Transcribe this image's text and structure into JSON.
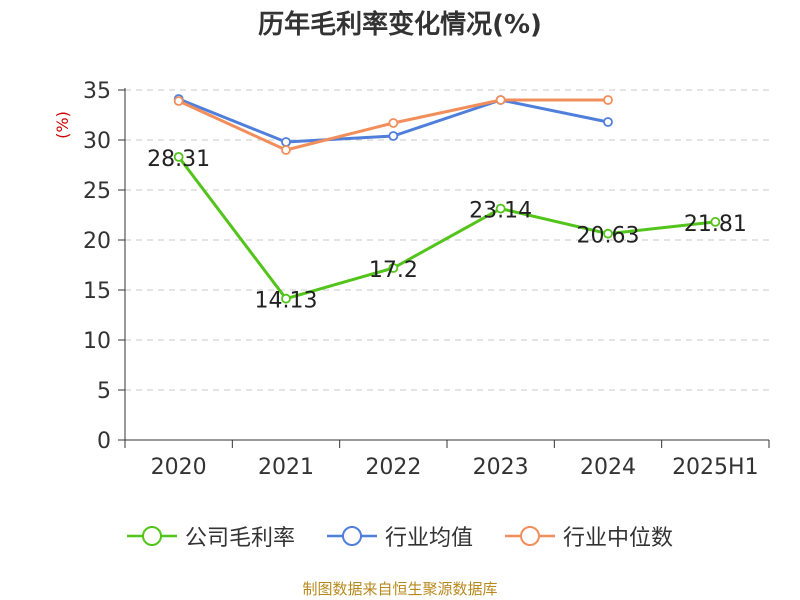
{
  "chart_data": {
    "type": "line",
    "title": "历年毛利率变化情况(%)",
    "ylabel": "(%)",
    "categories": [
      "2020",
      "2021",
      "2022",
      "2023",
      "2024",
      "2025H1"
    ],
    "ylim": [
      0,
      35
    ],
    "yticks": [
      0,
      5,
      10,
      15,
      20,
      25,
      30,
      35
    ],
    "grid": true,
    "legend_position": "bottom",
    "series": [
      {
        "name": "公司毛利率",
        "color": "#52c41a",
        "values": [
          28.31,
          14.13,
          17.2,
          23.14,
          20.63,
          21.81
        ],
        "labels": [
          "28.31",
          "14.13",
          "17.2",
          "23.14",
          "20.63",
          "21.81"
        ]
      },
      {
        "name": "行业均值",
        "color": "#4f7fdb",
        "values": [
          34.1,
          29.8,
          30.4,
          34.0,
          31.8,
          null
        ]
      },
      {
        "name": "行业中位数",
        "color": "#f28e5b",
        "values": [
          33.9,
          29.0,
          31.7,
          34.0,
          34.0,
          null
        ]
      }
    ]
  },
  "footer": {
    "source": "制图数据来自恒生聚源数据库"
  }
}
